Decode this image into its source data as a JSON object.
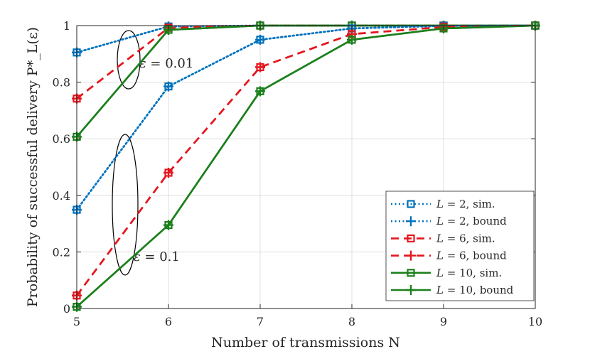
{
  "chart_data": {
    "type": "line",
    "title": "",
    "xlabel": "Number of transmissions N",
    "ylabel": "Probability of successful delivery P*_L(ε)",
    "x": [
      5,
      6,
      7,
      8,
      9,
      10
    ],
    "xlim": [
      5,
      10
    ],
    "ylim": [
      0,
      1
    ],
    "xticks": [
      "5",
      "6",
      "7",
      "8",
      "9",
      "10"
    ],
    "yticks": [
      "0",
      "0.2",
      "0.4",
      "0.6",
      "0.8",
      "1"
    ],
    "grid": true,
    "legend_position": "bottom-right",
    "series": [
      {
        "name": "L = 2, sim.",
        "epsilon": "0.01",
        "kind": "sim",
        "color": "#0072BD",
        "dash": "dotted",
        "marker": "square",
        "values": [
          0.905,
          0.997,
          1.0,
          1.0,
          1.0,
          1.0
        ]
      },
      {
        "name": "L = 2, bound",
        "epsilon": "0.01",
        "kind": "bound",
        "color": "#0072BD",
        "dash": "dotted",
        "marker": "plus",
        "values": [
          0.905,
          0.997,
          1.0,
          1.0,
          1.0,
          1.0
        ]
      },
      {
        "name": "L = 6, sim.",
        "epsilon": "0.01",
        "kind": "sim",
        "color": "#E5161D",
        "dash": "dashed",
        "marker": "square",
        "values": [
          0.742,
          0.992,
          1.0,
          1.0,
          1.0,
          1.0
        ]
      },
      {
        "name": "L = 6, bound",
        "epsilon": "0.01",
        "kind": "bound",
        "color": "#E5161D",
        "dash": "dashed",
        "marker": "plus",
        "values": [
          0.742,
          0.992,
          1.0,
          1.0,
          1.0,
          1.0
        ]
      },
      {
        "name": "L = 10, sim.",
        "epsilon": "0.01",
        "kind": "sim",
        "color": "#1B801B",
        "dash": "solid",
        "marker": "square",
        "values": [
          0.607,
          0.985,
          1.0,
          1.0,
          1.0,
          1.0
        ]
      },
      {
        "name": "L = 10, bound",
        "epsilon": "0.01",
        "kind": "bound",
        "color": "#1B801B",
        "dash": "solid",
        "marker": "plus",
        "values": [
          0.607,
          0.985,
          1.0,
          1.0,
          1.0,
          1.0
        ]
      },
      {
        "name": "L = 2, sim.",
        "epsilon": "0.1",
        "kind": "sim",
        "color": "#0072BD",
        "dash": "dotted",
        "marker": "square",
        "values": [
          0.349,
          0.785,
          0.95,
          0.99,
          0.999,
          1.0
        ]
      },
      {
        "name": "L = 2, bound",
        "epsilon": "0.1",
        "kind": "bound",
        "color": "#0072BD",
        "dash": "dotted",
        "marker": "plus",
        "values": [
          0.349,
          0.785,
          0.95,
          0.99,
          0.999,
          1.0
        ]
      },
      {
        "name": "L = 6, sim.",
        "epsilon": "0.1",
        "kind": "sim",
        "color": "#E5161D",
        "dash": "dashed",
        "marker": "square",
        "values": [
          0.046,
          0.48,
          0.853,
          0.97,
          0.995,
          1.0
        ]
      },
      {
        "name": "L = 6, bound",
        "epsilon": "0.1",
        "kind": "bound",
        "color": "#E5161D",
        "dash": "dashed",
        "marker": "plus",
        "values": [
          0.046,
          0.48,
          0.853,
          0.97,
          0.995,
          1.0
        ]
      },
      {
        "name": "L = 10, sim.",
        "epsilon": "0.1",
        "kind": "sim",
        "color": "#1B801B",
        "dash": "solid",
        "marker": "square",
        "values": [
          0.006,
          0.295,
          0.768,
          0.95,
          0.99,
          1.0
        ]
      },
      {
        "name": "L = 10, bound",
        "epsilon": "0.1",
        "kind": "bound",
        "color": "#1B801B",
        "dash": "solid",
        "marker": "plus",
        "values": [
          0.006,
          0.295,
          0.768,
          0.95,
          0.99,
          1.0
        ]
      }
    ],
    "legend": [
      {
        "L": "2",
        "suffix": ", sim.",
        "color": "#0072BD",
        "dash": "dotted",
        "marker": "square"
      },
      {
        "L": "2",
        "suffix": ", bound",
        "color": "#0072BD",
        "dash": "dotted",
        "marker": "plus"
      },
      {
        "L": "6",
        "suffix": ", sim.",
        "color": "#E5161D",
        "dash": "dashed",
        "marker": "square"
      },
      {
        "L": "6",
        "suffix": ", bound",
        "color": "#E5161D",
        "dash": "dashed",
        "marker": "plus"
      },
      {
        "L": "10",
        "suffix": ", sim.",
        "color": "#1B801B",
        "dash": "solid",
        "marker": "square"
      },
      {
        "L": "10",
        "suffix": ", bound",
        "color": "#1B801B",
        "dash": "solid",
        "marker": "plus"
      }
    ],
    "annotations": [
      {
        "symbol": "ε",
        "value": "0.01",
        "group": "epsilon = 0.01"
      },
      {
        "symbol": "ε",
        "value": "0.1",
        "group": "epsilon = 0.1"
      }
    ]
  }
}
